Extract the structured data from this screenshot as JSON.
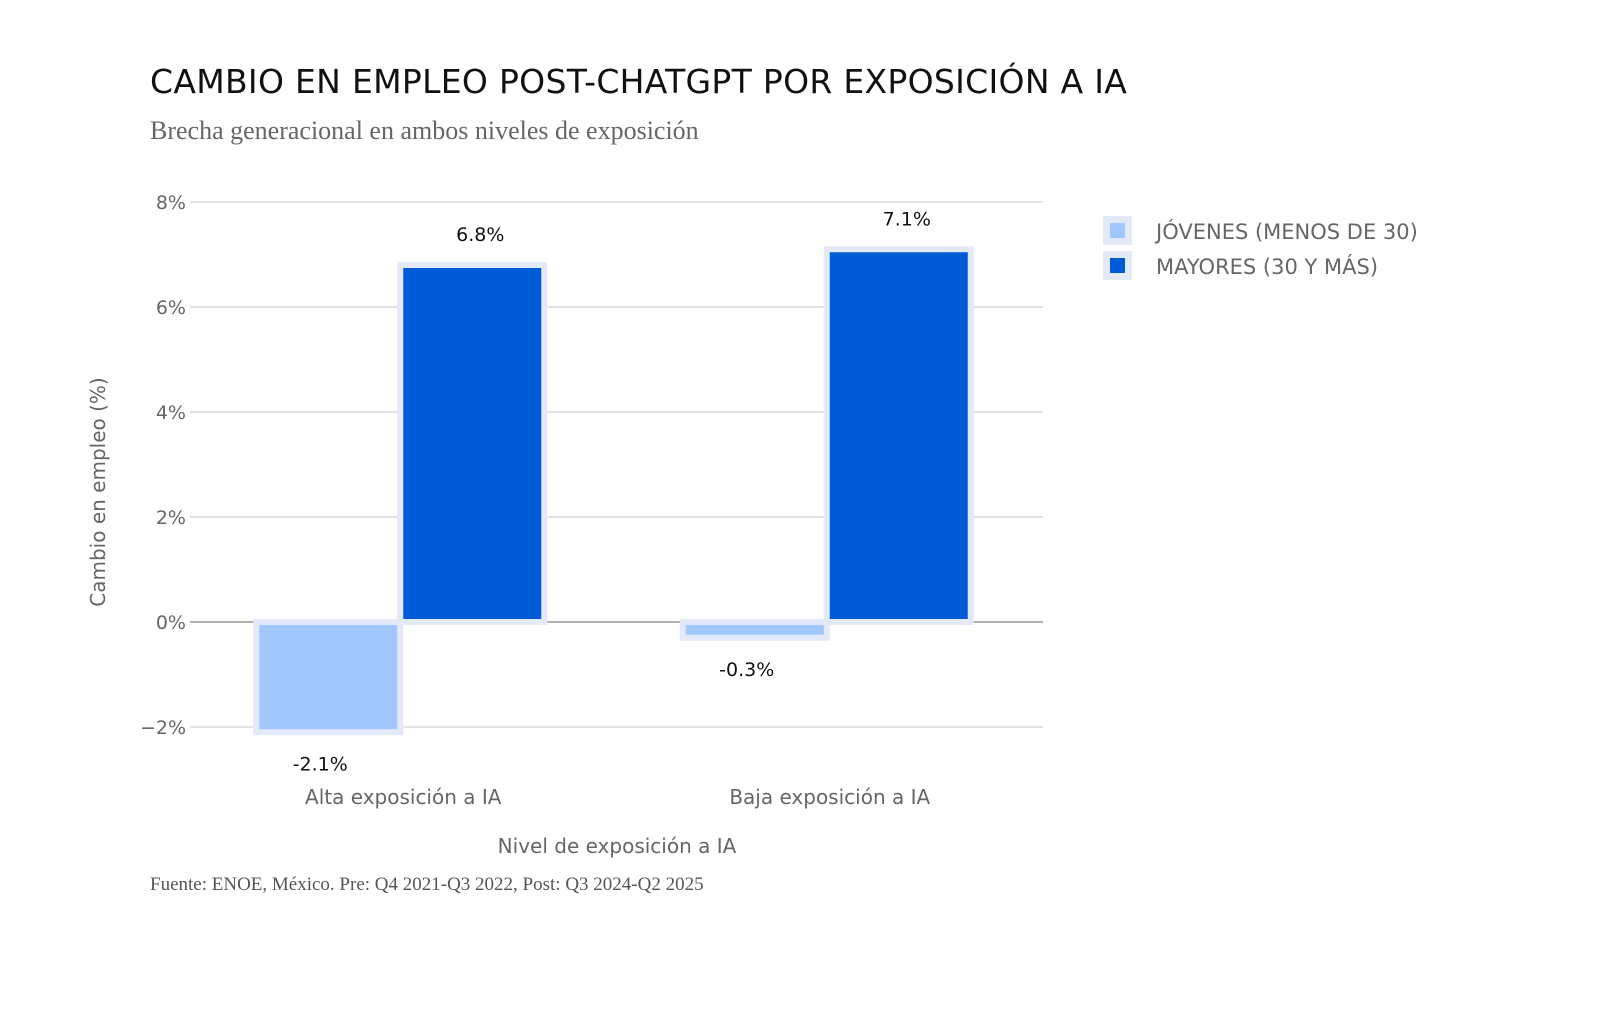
{
  "chart_data": {
    "type": "bar",
    "title": "CAMBIO EN EMPLEO POST-CHATGPT POR EXPOSICIÓN A IA",
    "subtitle": "Brecha generacional en ambos niveles de exposición",
    "xlabel": "Nivel de exposición a IA",
    "ylabel": "Cambio en empleo (%)",
    "ylim": [
      -2,
      8
    ],
    "yticks": [
      -2,
      0,
      2,
      4,
      6,
      8
    ],
    "ytick_labels": [
      "−2%",
      "0%",
      "2%",
      "4%",
      "6%",
      "8%"
    ],
    "grid": true,
    "legend_position": "top-right",
    "categories": [
      "Alta exposición a IA",
      "Baja exposición a IA"
    ],
    "series": [
      {
        "name": "JÓVENES (MENOS DE 30)",
        "values": [
          -2.1,
          -0.3
        ],
        "labels": [
          "-2.1%",
          "-0.3%"
        ],
        "color": "#a0c8ff"
      },
      {
        "name": "MAYORES (30 Y MÁS)",
        "values": [
          6.8,
          7.1
        ],
        "labels": [
          "6.8%",
          "7.1%"
        ],
        "color": "#005bd6"
      }
    ],
    "bar_outline_color": "#e3e9f7",
    "source": "Fuente: ENOE, México. Pre: Q4 2021-Q3 2022, Post: Q3 2024-Q2 2025"
  }
}
